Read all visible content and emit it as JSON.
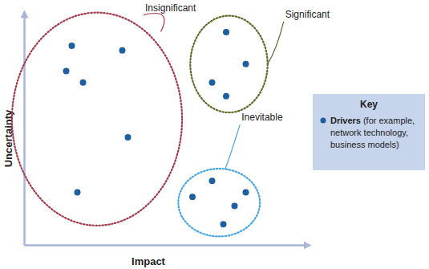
{
  "chart_data": {
    "type": "scatter",
    "x_label": "Impact",
    "y_label": "Uncertainty",
    "xlim": [
      0,
      10
    ],
    "ylim": [
      0,
      10
    ],
    "xticks": [],
    "yticks": [],
    "tick_labels": false,
    "grid": false,
    "legend": "right",
    "legend_title": "Key",
    "series": [
      {
        "name": "Drivers",
        "description": "(for example, network technology, business models)",
        "color": "#1f5f9f",
        "marker": "circle",
        "x": [
          1.7,
          1.5,
          2.1,
          3.5,
          3.7,
          1.9,
          7.2,
          7.9,
          6.7,
          7.2,
          6.0,
          6.7,
          7.9,
          7.5,
          7.1
        ],
        "y": [
          8.7,
          7.6,
          7.1,
          8.5,
          4.7,
          2.3,
          9.3,
          7.9,
          7.1,
          6.5,
          2.1,
          2.8,
          2.3,
          1.7,
          0.9
        ]
      }
    ],
    "clusters": [
      {
        "label": "Insignificant",
        "color": "#a3394a",
        "indices": [
          0,
          1,
          2,
          3,
          4,
          5
        ]
      },
      {
        "label": "Significant",
        "color": "#5b6b2a",
        "indices": [
          6,
          7,
          8,
          9
        ]
      },
      {
        "label": "Inevitable",
        "color": "#45a6e6",
        "indices": [
          10,
          11,
          12,
          13,
          14
        ]
      }
    ]
  }
}
